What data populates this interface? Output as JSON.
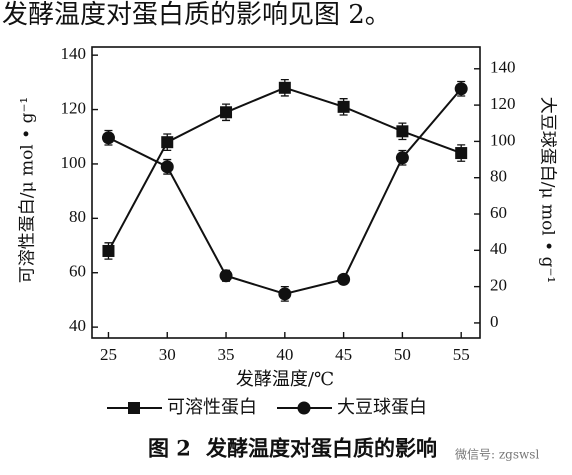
{
  "header": "发酵温度对蛋白质的影响见图 2。",
  "chart_data": {
    "type": "line",
    "x": [
      25,
      30,
      35,
      40,
      45,
      50,
      55
    ],
    "xlim": [
      23.6,
      56.6
    ],
    "xticks": [
      25,
      30,
      35,
      40,
      45,
      50,
      55
    ],
    "ylim": [
      36,
      143
    ],
    "yticks": [
      40,
      60,
      80,
      100,
      120,
      140
    ],
    "y2lim": [
      -8.3,
      152
    ],
    "y2ticks": [
      0,
      20,
      40,
      60,
      80,
      100,
      120,
      140
    ],
    "xlabel": "发酵温度/℃",
    "ylabel": "可溶性蛋白/μ mol • g⁻¹",
    "y2label": "大豆球蛋白/μ mol • g⁻¹",
    "series": [
      {
        "name": "可溶性蛋白",
        "marker": "square",
        "color": "#111111",
        "values": [
          68,
          108,
          119,
          128,
          121,
          112,
          104
        ],
        "errors": [
          3,
          3,
          3,
          3,
          3,
          3,
          3
        ]
      },
      {
        "name": "大豆球蛋白",
        "marker": "circle",
        "color": "#111111",
        "axis": "y2",
        "values": [
          102,
          86,
          26,
          16,
          24,
          91,
          129
        ],
        "errors": [
          4,
          4,
          3,
          4,
          2,
          4,
          4
        ]
      }
    ]
  },
  "caption": {
    "label": "图 2",
    "text": "发酵温度对蛋白质的影响"
  },
  "watermark": "微信号: zgswsl"
}
